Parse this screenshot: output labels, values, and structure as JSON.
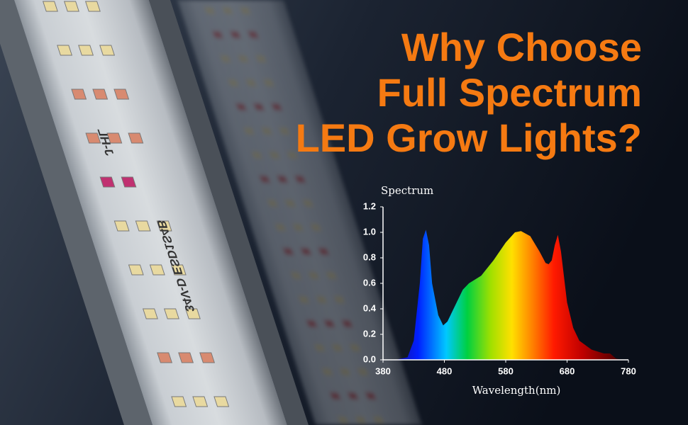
{
  "title_lines": [
    "Why Choose",
    "Full Spectrum",
    "LED Grow Lights?"
  ],
  "strip_labels": [
    "J-HL",
    "34V-D ESD1S4B"
  ],
  "chart_data": {
    "type": "area",
    "y_label": "Spectrum",
    "x_label": "Wavelength(nm)",
    "x": [
      400,
      420,
      430,
      440,
      445,
      450,
      455,
      460,
      470,
      478,
      485,
      500,
      510,
      520,
      540,
      560,
      580,
      595,
      605,
      620,
      635,
      645,
      650,
      655,
      660,
      665,
      670,
      680,
      690,
      700,
      720,
      740,
      750,
      760,
      770
    ],
    "values": [
      0,
      0.02,
      0.15,
      0.6,
      0.95,
      1.02,
      0.9,
      0.6,
      0.35,
      0.27,
      0.3,
      0.45,
      0.55,
      0.6,
      0.66,
      0.78,
      0.92,
      1.0,
      1.01,
      0.97,
      0.85,
      0.76,
      0.75,
      0.78,
      0.9,
      0.98,
      0.85,
      0.45,
      0.25,
      0.15,
      0.08,
      0.05,
      0.05,
      0.01,
      0
    ],
    "xlim": [
      380,
      780
    ],
    "xticks": [
      380,
      480,
      580,
      680,
      780
    ],
    "ylim": [
      0,
      1.2
    ],
    "yticks": [
      {
        "value": 0,
        "label": "0.0"
      },
      0.2,
      0.4,
      0.6,
      0.8,
      {
        "value": 1,
        "label": "1.0"
      },
      1.2
    ]
  }
}
